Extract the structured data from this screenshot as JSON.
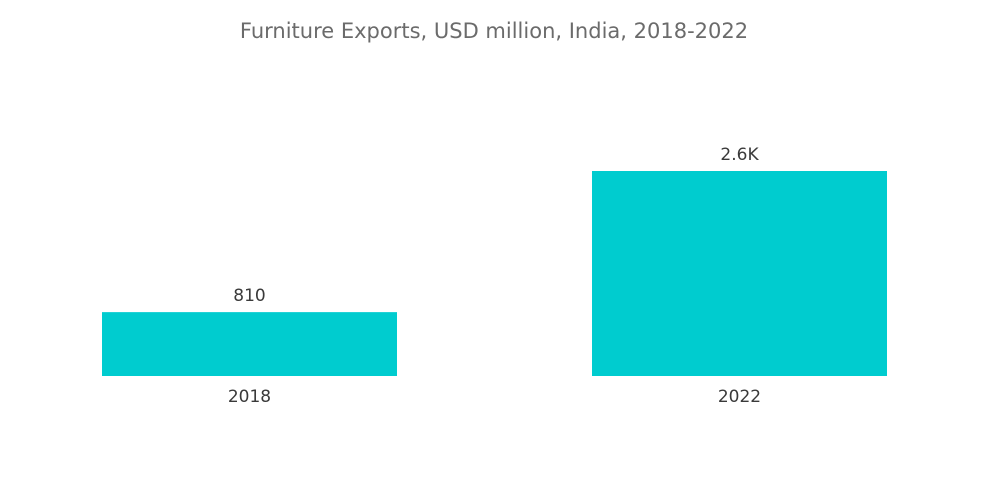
{
  "chart_data": {
    "type": "bar",
    "title": "Furniture Exports, USD million, India, 2018-2022",
    "xlabel": "",
    "ylabel": "",
    "categories": [
      "2018",
      "2022"
    ],
    "values": [
      810,
      2600
    ],
    "data_labels": [
      "810",
      "2.6K"
    ],
    "ylim": [
      0,
      2600
    ],
    "grid": false,
    "legend": "none",
    "colors": {
      "bar": "#00cccf"
    }
  }
}
